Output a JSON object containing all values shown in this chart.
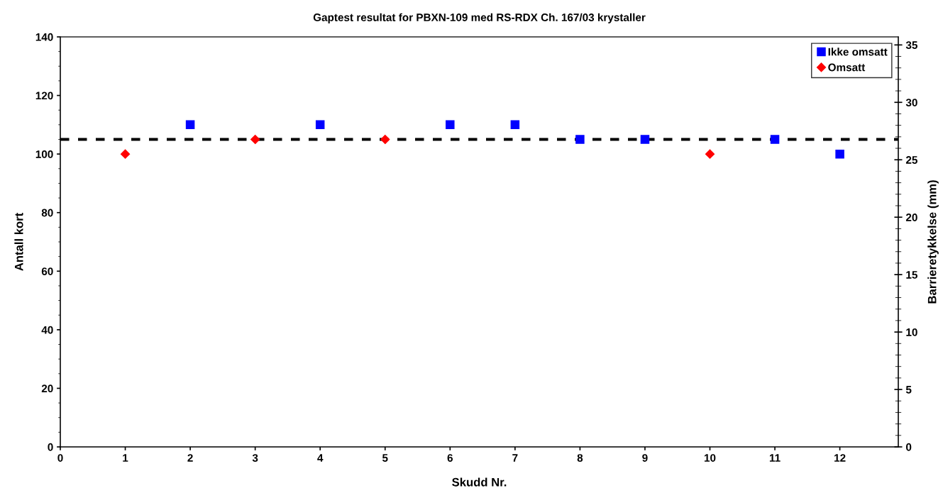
{
  "chart_data": {
    "type": "scatter",
    "title": "Gaptest resultat for PBXN-109 med RS-RDX Ch. 167/03 krystaller",
    "xlabel": "Skudd Nr.",
    "ylabel": "Antall kort",
    "y2label": "Barrieretykkelse (mm)",
    "series": [
      {
        "name": "Ikke omsatt",
        "color": "#0000ff",
        "marker": "square",
        "x": [
          2,
          4,
          6,
          7,
          8,
          9,
          11,
          12
        ],
        "values": [
          110,
          110,
          110,
          110,
          105,
          105,
          105,
          100
        ]
      },
      {
        "name": "Omsatt",
        "color": "#ff0000",
        "marker": "diamond",
        "x": [
          1,
          3,
          5,
          10
        ],
        "values": [
          100,
          105,
          105,
          100
        ]
      }
    ],
    "xlim": [
      0,
      12.9
    ],
    "xticks": [
      0,
      1,
      2,
      3,
      4,
      5,
      6,
      7,
      8,
      9,
      10,
      11,
      12
    ],
    "ylim": [
      0,
      140
    ],
    "yticks": [
      0,
      20,
      40,
      60,
      80,
      100,
      120,
      140
    ],
    "y2lim": [
      0,
      35.7
    ],
    "y2ticks": [
      0,
      5,
      10,
      15,
      20,
      25,
      30,
      35
    ],
    "ref_lines": [
      {
        "axis": "y",
        "value": 105,
        "color": "#000000",
        "line_style": "dashed"
      }
    ],
    "grid": false,
    "legend": "top right"
  }
}
